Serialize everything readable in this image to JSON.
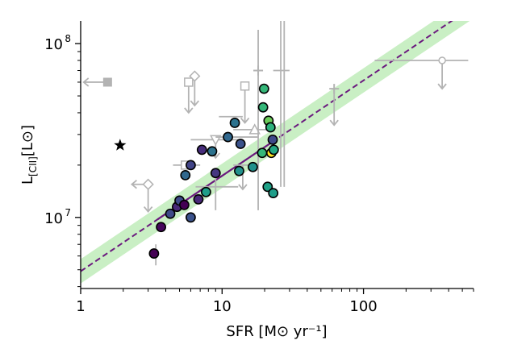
{
  "chart_data": {
    "type": "scatter",
    "xlabel": "SFR [M⊙ yr⁻¹]",
    "ylabel_main": "L",
    "ylabel_sub": "[CII]",
    "ylabel_unit": "[L⊙]",
    "x_scale": "log",
    "y_scale": "log",
    "xlim": [
      1,
      600
    ],
    "ylim": [
      3900000,
      135000000
    ],
    "x_ticks": [
      {
        "value": 1,
        "label": "1"
      },
      {
        "value": 10,
        "label": "10"
      },
      {
        "value": 100,
        "label": "100"
      }
    ],
    "y_ticks": [
      {
        "value": 10000000,
        "label": "10",
        "exp": "7"
      },
      {
        "value": 100000000,
        "label": "10",
        "exp": "8"
      }
    ],
    "grid": false,
    "colors": {
      "band": "#c9efc4",
      "fit_line": "#6b1a7e",
      "limits": "#b3b3b3",
      "point_edge": "#000000",
      "star": "#000000"
    },
    "relation": {
      "name": "",
      "points": [
        [
          1,
          4900000
        ],
        [
          420,
          135000000
        ]
      ],
      "band_dex": 0.07,
      "solid_range": [
        3.5,
        22.5
      ]
    },
    "series": [
      {
        "kind": "detections",
        "points": [
          {
            "x": 3.3,
            "y": 6200000,
            "color": "#440154"
          },
          {
            "x": 3.7,
            "y": 8800000,
            "color": "#46085c"
          },
          {
            "x": 4.3,
            "y": 10500000,
            "color": "#3e4989"
          },
          {
            "x": 4.8,
            "y": 11500000,
            "color": "#482878"
          },
          {
            "x": 5.0,
            "y": 12500000,
            "color": "#3e4a89"
          },
          {
            "x": 5.4,
            "y": 11800000,
            "color": "#440154"
          },
          {
            "x": 5.5,
            "y": 17500000,
            "color": "#31688e"
          },
          {
            "x": 6.0,
            "y": 20000000,
            "color": "#414487"
          },
          {
            "x": 6.0,
            "y": 10000000,
            "color": "#3b528b"
          },
          {
            "x": 6.8,
            "y": 12700000,
            "color": "#482878"
          },
          {
            "x": 7.2,
            "y": 24500000,
            "color": "#472d7b"
          },
          {
            "x": 7.7,
            "y": 14000000,
            "color": "#1f9e89"
          },
          {
            "x": 8.5,
            "y": 24000000,
            "color": "#2c728e"
          },
          {
            "x": 9.0,
            "y": 18000000,
            "color": "#453781"
          },
          {
            "x": 11.0,
            "y": 29000000,
            "color": "#31688e"
          },
          {
            "x": 12.3,
            "y": 35000000,
            "color": "#2c728e"
          },
          {
            "x": 13.2,
            "y": 18500000,
            "color": "#21918c"
          },
          {
            "x": 13.5,
            "y": 26500000,
            "color": "#3b528b"
          },
          {
            "x": 16.5,
            "y": 19500000,
            "color": "#21918c"
          },
          {
            "x": 19.2,
            "y": 23500000,
            "color": "#35b779"
          },
          {
            "x": 19.5,
            "y": 43000000,
            "color": "#35b779"
          },
          {
            "x": 19.8,
            "y": 55000000,
            "color": "#35b779"
          },
          {
            "x": 21.0,
            "y": 15000000,
            "color": "#1fa187"
          },
          {
            "x": 21.3,
            "y": 36000000,
            "color": "#6ccd5a"
          },
          {
            "x": 22.0,
            "y": 33000000,
            "color": "#2db27d"
          },
          {
            "x": 22.3,
            "y": 23500000,
            "color": "#fde725"
          },
          {
            "x": 22.8,
            "y": 28000000,
            "color": "#3e4a89"
          },
          {
            "x": 23.0,
            "y": 13800000,
            "color": "#1f9e89"
          },
          {
            "x": 23.2,
            "y": 24500000,
            "color": "#22a884"
          }
        ]
      },
      {
        "kind": "reference-star",
        "points": [
          {
            "x": 1.9,
            "y": 26000000
          }
        ]
      },
      {
        "kind": "limits",
        "points": [
          {
            "x": 1.55,
            "y": 60000000,
            "marker": "square-filled",
            "xerr_left": 1.0,
            "arrow": "left",
            "arrow_to": 1.05
          },
          {
            "x": 3.0,
            "y": 15500000,
            "marker": "diamond-open",
            "arrow": "left",
            "arrow_to": 2.3
          },
          {
            "x": 3.0,
            "y": 15500000,
            "marker": "diamond-open",
            "arrow": "down",
            "arrow_to": 10800000
          },
          {
            "x": 3.4,
            "y": 5900000,
            "marker": "none",
            "yerr": [
              5300000,
              7000000
            ]
          },
          {
            "x": 5.8,
            "y": 60000000,
            "marker": "square-open",
            "arrow": "down",
            "arrow_to": 40000000
          },
          {
            "x": 6.4,
            "y": 65000000,
            "marker": "diamond-open",
            "arrow": "down",
            "arrow_to": 44000000
          },
          {
            "x": 5.5,
            "y": 20000000,
            "marker": "square-open",
            "xerr": [
              4.5,
              7.0
            ]
          },
          {
            "x": 9.0,
            "y": 28000000,
            "marker": "triangle-down-open",
            "xerr": [
              6.0,
              14.0
            ],
            "arrow": "down",
            "arrow_to": 22000000
          },
          {
            "x": 9.0,
            "y": 15000000,
            "marker": "none",
            "xerr": [
              6.5,
              13.0
            ],
            "yerr": [
              11000000,
              19000000
            ]
          },
          {
            "x": 11.5,
            "y": 38000000,
            "marker": "none",
            "xerr": [
              9.5,
              14.0
            ]
          },
          {
            "x": 12.0,
            "y": 29000000,
            "marker": "none",
            "xerr": [
              9.0,
              18.0
            ]
          },
          {
            "x": 14.0,
            "y": 20000000,
            "marker": "none",
            "xerr": [
              12.0,
              17.0
            ],
            "arrow": "down",
            "arrow_to": 14500000
          },
          {
            "x": 14.5,
            "y": 57000000,
            "marker": "square-open",
            "arrow": "down",
            "arrow_to": 35000000
          },
          {
            "x": 17.0,
            "y": 32000000,
            "marker": "triangle-up-open",
            "xerr": [
              12.0,
              23.0
            ]
          },
          {
            "x": 18.0,
            "y": 70000000,
            "marker": "plus",
            "yerr": [
              11000000,
              120000000
            ]
          },
          {
            "x": 26.0,
            "y": 70000000,
            "marker": "none",
            "xerr": [
              23.0,
              30.0
            ],
            "yerr": [
              15000000,
              135000000
            ]
          },
          {
            "x": 27.5,
            "y": 28000000,
            "marker": "none",
            "yerr": [
              15000000,
              135000000
            ]
          },
          {
            "x": 62.0,
            "y": 55000000,
            "marker": "plus",
            "arrow": "down",
            "arrow_to": 34000000
          },
          {
            "x": 360.0,
            "y": 80000000,
            "marker": "circle-open",
            "xerr": [
              120.0,
              550.0
            ],
            "arrow": "down",
            "arrow_to": 55000000
          }
        ]
      }
    ]
  }
}
